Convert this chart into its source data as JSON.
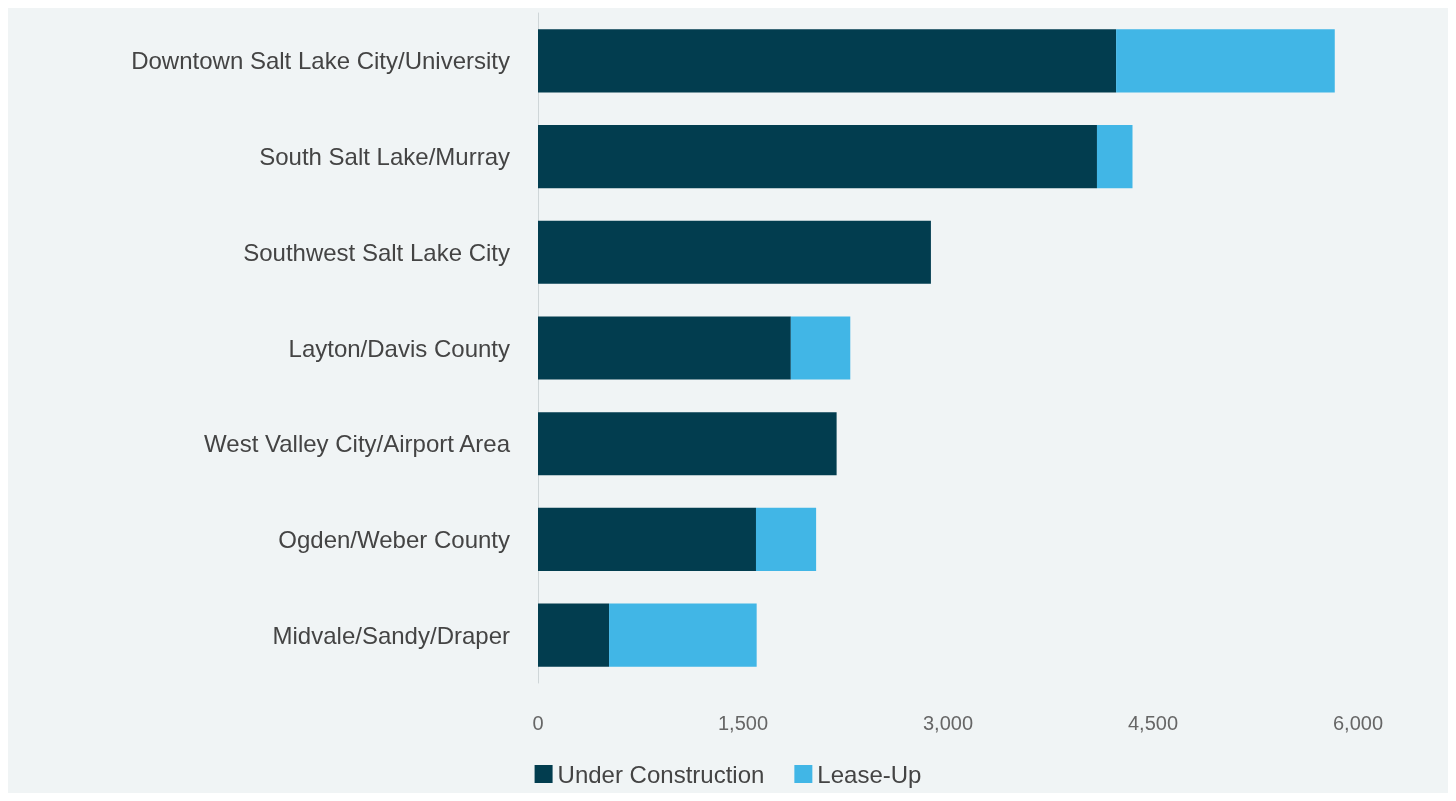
{
  "chart_data": {
    "type": "bar",
    "orientation": "horizontal",
    "stacked": true,
    "categories": [
      "Downtown Salt Lake City/University",
      "South Salt Lake/Murray",
      "Southwest Salt Lake City",
      "Layton/Davis County",
      "West Valley City/Airport Area",
      "Ogden/Weber County",
      "Midvale/Sandy/Draper"
    ],
    "series": [
      {
        "name": "Under Construction",
        "color": "#023d4f",
        "values": [
          4230,
          4090,
          2875,
          1850,
          2185,
          1595,
          520
        ]
      },
      {
        "name": "Lease-Up",
        "color": "#41b6e6",
        "values": [
          1600,
          260,
          0,
          435,
          0,
          440,
          1080
        ]
      }
    ],
    "xlim": [
      0,
      6000
    ],
    "xticks": [
      {
        "value": 0,
        "label": "0"
      },
      {
        "value": 1500,
        "label": "1,500"
      },
      {
        "value": 3000,
        "label": "3,000"
      },
      {
        "value": 4500,
        "label": "4,500"
      },
      {
        "value": 6000,
        "label": "6,000"
      }
    ],
    "grid": false,
    "legend": "bottom"
  }
}
